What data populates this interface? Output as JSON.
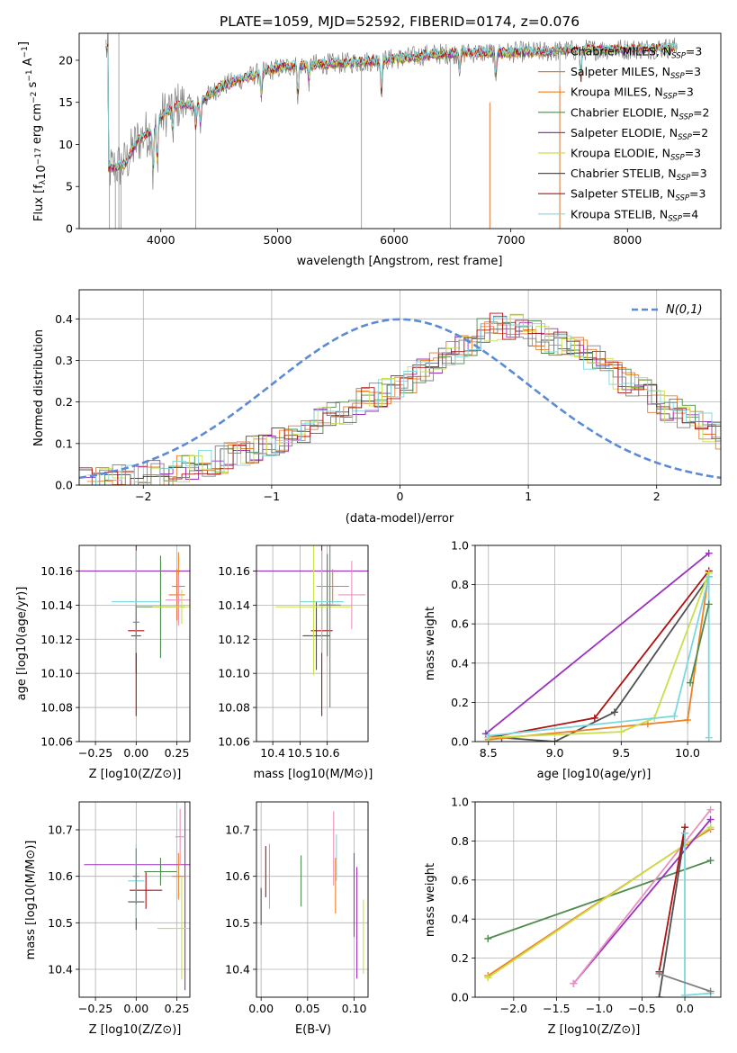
{
  "figure_title": "PLATE=1059, MJD=52592, FIBERID=0174, z=0.076",
  "colors": {
    "chabrier_miles": "#808080",
    "salpeter_miles": "#e07b39",
    "kroupa_miles": "#f07f20",
    "chabrier_elodie": "#4e8c4e",
    "salpeter_elodie": "#9b30c0",
    "kroupa_elodie": "#c8e04a",
    "chabrier_stelib": "#505050",
    "salpeter_stelib": "#b01010",
    "kroupa_stelib": "#7ad8dc",
    "pink": "#e890c0",
    "gauss": "#5b8bd6"
  },
  "chart_data": [
    {
      "panel": "spectrum",
      "type": "line",
      "xlabel": "wavelength [Angstrom, rest frame]",
      "ylabel": "Flux [f_λ 10^-17 erg cm^-2 s^-1 A^-1]",
      "xlim": [
        3300,
        8800
      ],
      "ylim": [
        0,
        23.2
      ],
      "xticks": [
        4000,
        5000,
        6000,
        7000,
        8000
      ],
      "yticks": [
        0,
        5,
        10,
        15,
        20
      ],
      "legend_position": "right",
      "legend": [
        {
          "label": "Chabrier MILES, N_SSP=3",
          "color_key": "chabrier_miles"
        },
        {
          "label": "Salpeter MILES, N_SSP=3",
          "color_key": "salpeter_miles"
        },
        {
          "label": "Kroupa MILES, N_SSP=3",
          "color_key": "kroupa_miles"
        },
        {
          "label": "Chabrier ELODIE, N_SSP=2",
          "color_key": "chabrier_elodie"
        },
        {
          "label": "Salpeter ELODIE, N_SSP=2",
          "color_key": "salpeter_elodie"
        },
        {
          "label": "Kroupa ELODIE, N_SSP=3",
          "color_key": "kroupa_elodie"
        },
        {
          "label": "Chabrier STELIB, N_SSP=3",
          "color_key": "chabrier_stelib"
        },
        {
          "label": "Salpeter STELIB, N_SSP=3",
          "color_key": "salpeter_stelib"
        },
        {
          "label": "Kroupa STELIB, N_SSP=4",
          "color_key": "kroupa_stelib"
        }
      ],
      "data_trend": {
        "x": [
          3550,
          3700,
          3800,
          3900,
          4000,
          4100,
          4200,
          4300,
          4500,
          4700,
          4900,
          5100,
          5300,
          5500,
          5700,
          5900,
          6100,
          6300,
          6500,
          6700,
          6900,
          7100,
          7300,
          7400,
          7600,
          7800,
          8000,
          8200,
          8400
        ],
        "y": [
          7.0,
          7.8,
          10.5,
          11.5,
          13.2,
          14.5,
          14.8,
          14.6,
          16.8,
          17.8,
          18.7,
          19.3,
          19.5,
          19.6,
          19.8,
          20.0,
          20.3,
          20.7,
          20.8,
          20.9,
          20.9,
          21.0,
          21.0,
          21.1,
          21.2,
          21.3,
          21.3,
          21.4,
          21.5
        ]
      }
    },
    {
      "panel": "residual_distribution",
      "type": "area",
      "xlabel": "(data-model)/error",
      "ylabel": "Normed distribution",
      "xlim": [
        -2.5,
        2.5
      ],
      "ylim": [
        0,
        0.47
      ],
      "xticks": [
        -2,
        -1,
        0,
        1,
        2
      ],
      "yticks": [
        0.0,
        0.1,
        0.2,
        0.3,
        0.4
      ],
      "legend": [
        {
          "label": "N(0,1)",
          "color_key": "gauss",
          "style": "dashed"
        }
      ],
      "gaussian": {
        "mean": 0,
        "sigma": 1
      },
      "histogram_bin_width": 0.1,
      "histogram_trend": {
        "x": [
          -2.5,
          -2.0,
          -1.5,
          -1.0,
          -0.5,
          0.0,
          0.5,
          0.75,
          1.0,
          1.5,
          2.0,
          2.5
        ],
        "y": [
          0.01,
          0.02,
          0.05,
          0.1,
          0.17,
          0.24,
          0.33,
          0.39,
          0.37,
          0.31,
          0.2,
          0.12
        ]
      }
    },
    {
      "panel": "age_vs_Z",
      "type": "scatter",
      "xlabel": "Z [log10(Z/Z⊙)]",
      "ylabel": "age  [log10(age/yr)]",
      "xlim": [
        -0.35,
        0.33
      ],
      "ylim": [
        10.06,
        10.175
      ],
      "xticks": [
        -0.25,
        0.0,
        0.25
      ],
      "xtick_labels": [
        "−0.25",
        "0.00",
        "0.25"
      ],
      "yticks": [
        10.06,
        10.08,
        10.1,
        10.12,
        10.14,
        10.16
      ],
      "points": [
        {
          "x": 0.3,
          "y": 10.16,
          "xerr": 0.65,
          "yerr": 0.0,
          "color_key": "salpeter_elodie"
        },
        {
          "x": 0.0,
          "y": 10.122,
          "xerr": 0.03,
          "yerr": 0.022,
          "color_key": "chabrier_stelib"
        },
        {
          "x": 0.0,
          "y": 10.125,
          "xerr": 0.05,
          "yerr": 0.05,
          "color_key": "salpeter_stelib"
        },
        {
          "x": 0.15,
          "y": 10.139,
          "xerr": 0.15,
          "yerr": 0.03,
          "color_key": "chabrier_elodie"
        },
        {
          "x": 0.26,
          "y": 10.151,
          "xerr": 0.04,
          "yerr": 0.02,
          "color_key": "kroupa_miles"
        },
        {
          "x": 0.25,
          "y": 10.146,
          "xerr": 0.05,
          "yerr": 0.015,
          "color_key": "salpeter_miles"
        },
        {
          "x": 0.26,
          "y": 10.143,
          "xerr": 0.08,
          "yerr": 0.015,
          "color_key": "pink"
        },
        {
          "x": 0.0,
          "y": 10.142,
          "xerr": 0.15,
          "yerr": 0.03,
          "color_key": "kroupa_stelib"
        },
        {
          "x": 0.28,
          "y": 10.139,
          "xerr": 0.18,
          "yerr": 0.01,
          "color_key": "kroupa_elodie"
        },
        {
          "x": 0.0,
          "y": 10.13,
          "xerr": 0.02,
          "yerr": 0.01,
          "color_key": "chabrier_miles"
        }
      ]
    },
    {
      "panel": "age_vs_mass",
      "type": "scatter",
      "xlabel": "mass [log10(M/M⊙)]",
      "ylabel": "",
      "xlim": [
        10.34,
        10.75
      ],
      "ylim": [
        10.06,
        10.175
      ],
      "xticks": [
        10.4,
        10.5,
        10.6
      ],
      "xtick_labels": [
        "10.4",
        "10.5",
        "10.6"
      ],
      "yticks": [
        10.06,
        10.08,
        10.1,
        10.12,
        10.14,
        10.16
      ],
      "points": [
        {
          "x": 10.63,
          "y": 10.16,
          "xerr": 0.3,
          "yerr": 0.0,
          "color_key": "salpeter_elodie"
        },
        {
          "x": 10.56,
          "y": 10.122,
          "xerr": 0.05,
          "yerr": 0.02,
          "color_key": "chabrier_stelib"
        },
        {
          "x": 10.58,
          "y": 10.125,
          "xerr": 0.04,
          "yerr": 0.05,
          "color_key": "salpeter_stelib"
        },
        {
          "x": 10.6,
          "y": 10.14,
          "xerr": 0.03,
          "yerr": 0.03,
          "color_key": "chabrier_elodie"
        },
        {
          "x": 10.62,
          "y": 10.151,
          "xerr": 0.06,
          "yerr": 0.01,
          "color_key": "kroupa_miles"
        },
        {
          "x": 10.69,
          "y": 10.146,
          "xerr": 0.05,
          "yerr": 0.02,
          "color_key": "pink"
        },
        {
          "x": 10.58,
          "y": 10.142,
          "xerr": 0.08,
          "yerr": 0.03,
          "color_key": "kroupa_stelib"
        },
        {
          "x": 10.55,
          "y": 10.139,
          "xerr": 0.14,
          "yerr": 0.04,
          "color_key": "kroupa_elodie"
        },
        {
          "x": 10.61,
          "y": 10.14,
          "xerr": 0.04,
          "yerr": 0.06,
          "color_key": "chabrier_miles"
        }
      ]
    },
    {
      "panel": "mass_weight_vs_age",
      "type": "line",
      "xlabel": "age  [log10(age/yr)]",
      "ylabel": "mass weight",
      "xlim": [
        8.4,
        10.25
      ],
      "ylim": [
        0,
        1.0
      ],
      "xticks": [
        8.5,
        9.0,
        9.5,
        10.0
      ],
      "yticks": [
        0.0,
        0.2,
        0.4,
        0.6,
        0.8,
        1.0
      ],
      "series": [
        {
          "color_key": "salpeter_elodie",
          "x": [
            8.48,
            10.16
          ],
          "y": [
            0.04,
            0.96
          ]
        },
        {
          "color_key": "salpeter_stelib",
          "x": [
            8.5,
            9.3,
            10.16
          ],
          "y": [
            0.02,
            0.12,
            0.87
          ]
        },
        {
          "color_key": "chabrier_stelib",
          "x": [
            8.6,
            9.0,
            9.45,
            10.16
          ],
          "y": [
            0.02,
            0.0,
            0.15,
            0.84
          ]
        },
        {
          "color_key": "kroupa_miles",
          "x": [
            8.5,
            9.7,
            10.0,
            10.16
          ],
          "y": [
            0.01,
            0.09,
            0.11,
            0.86
          ]
        },
        {
          "color_key": "kroupa_elodie",
          "x": [
            8.5,
            9.5,
            9.75,
            10.16
          ],
          "y": [
            0.02,
            0.05,
            0.12,
            0.86
          ]
        },
        {
          "color_key": "kroupa_stelib",
          "x": [
            8.5,
            9.9,
            10.16,
            10.16
          ],
          "y": [
            0.03,
            0.13,
            0.84,
            0.02
          ]
        },
        {
          "color_key": "chabrier_elodie",
          "x": [
            10.02,
            10.16
          ],
          "y": [
            0.3,
            0.7
          ]
        }
      ]
    },
    {
      "panel": "mass_vs_Z",
      "type": "scatter",
      "xlabel": "Z [log10(Z/Z⊙)]",
      "ylabel": "mass [log10(M/M⊙)]",
      "xlim": [
        -0.35,
        0.33
      ],
      "ylim": [
        10.34,
        10.76
      ],
      "xticks": [
        -0.25,
        0.0,
        0.25
      ],
      "xtick_labels": [
        "−0.25",
        "0.00",
        "0.25"
      ],
      "yticks": [
        10.4,
        10.5,
        10.6,
        10.7
      ],
      "points": [
        {
          "x": 0.3,
          "y": 10.625,
          "xerr": 0.62,
          "yerr": 0.27,
          "color_key": "salpeter_elodie"
        },
        {
          "x": 0.0,
          "y": 10.545,
          "xerr": 0.05,
          "yerr": 0.06,
          "color_key": "chabrier_stelib"
        },
        {
          "x": 0.06,
          "y": 10.57,
          "xerr": 0.1,
          "yerr": 0.04,
          "color_key": "salpeter_stelib"
        },
        {
          "x": 0.15,
          "y": 10.61,
          "xerr": 0.1,
          "yerr": 0.03,
          "color_key": "chabrier_elodie"
        },
        {
          "x": 0.26,
          "y": 10.6,
          "xerr": 0.04,
          "yerr": 0.05,
          "color_key": "kroupa_miles"
        },
        {
          "x": 0.27,
          "y": 10.685,
          "xerr": 0.03,
          "yerr": 0.06,
          "color_key": "pink"
        },
        {
          "x": 0.0,
          "y": 10.59,
          "xerr": 0.05,
          "yerr": 0.08,
          "color_key": "kroupa_stelib"
        },
        {
          "x": 0.28,
          "y": 10.488,
          "xerr": 0.15,
          "yerr": 0.11,
          "color_key": "kroupa_elodie"
        },
        {
          "x": 0.0,
          "y": 10.6,
          "xerr": 0.02,
          "yerr": 0.06,
          "color_key": "chabrier_miles"
        }
      ]
    },
    {
      "panel": "mass_vs_EBV",
      "type": "scatter",
      "xlabel": "E(B-V)",
      "ylabel": "",
      "xlim": [
        -0.005,
        0.115
      ],
      "ylim": [
        10.34,
        10.76
      ],
      "xticks": [
        0.0,
        0.05,
        0.1
      ],
      "xtick_labels": [
        "0.00",
        "0.05",
        "0.10"
      ],
      "yticks": [
        10.4,
        10.5,
        10.6,
        10.7
      ],
      "points": [
        {
          "x": 0.0,
          "y": 10.535,
          "yerr": 0.04,
          "color_key": "chabrier_stelib"
        },
        {
          "x": 0.005,
          "y": 10.61,
          "yerr": 0.055,
          "color_key": "salpeter_stelib"
        },
        {
          "x": 0.009,
          "y": 10.6,
          "yerr": 0.07,
          "color_key": "pink"
        },
        {
          "x": 0.043,
          "y": 10.59,
          "yerr": 0.055,
          "color_key": "chabrier_elodie"
        },
        {
          "x": 0.078,
          "y": 10.66,
          "yerr": 0.08,
          "color_key": "pink"
        },
        {
          "x": 0.08,
          "y": 10.58,
          "yerr": 0.06,
          "color_key": "kroupa_miles"
        },
        {
          "x": 0.081,
          "y": 10.64,
          "yerr": 0.05,
          "color_key": "kroupa_stelib"
        },
        {
          "x": 0.1,
          "y": 10.56,
          "yerr": 0.09,
          "color_key": "salpeter_elodie"
        },
        {
          "x": 0.103,
          "y": 10.5,
          "yerr": 0.12,
          "color_key": "salpeter_elodie"
        },
        {
          "x": 0.11,
          "y": 10.47,
          "yerr": 0.08,
          "color_key": "kroupa_elodie"
        }
      ]
    },
    {
      "panel": "mass_weight_vs_Z",
      "type": "line",
      "xlabel": "Z [log10(Z/Z⊙)]",
      "ylabel": "mass weight",
      "xlim": [
        -2.45,
        0.42
      ],
      "ylim": [
        0,
        1.0
      ],
      "xticks": [
        -2.0,
        -1.5,
        -1.0,
        -0.5,
        0.0
      ],
      "xtick_labels": [
        "−2.0",
        "−1.5",
        "−1.0",
        "−0.5",
        "0.0"
      ],
      "yticks": [
        0.0,
        0.2,
        0.4,
        0.6,
        0.8,
        1.0
      ],
      "series": [
        {
          "color_key": "chabrier_elodie",
          "x": [
            -2.3,
            0.3
          ],
          "y": [
            0.3,
            0.7
          ]
        },
        {
          "color_key": "kroupa_miles",
          "x": [
            -2.3,
            0.0,
            0.3
          ],
          "y": [
            0.11,
            0.78,
            0.86
          ]
        },
        {
          "color_key": "kroupa_elodie",
          "x": [
            -2.3,
            0.3
          ],
          "y": [
            0.1,
            0.87
          ]
        },
        {
          "color_key": "salpeter_elodie",
          "x": [
            -1.3,
            0.3
          ],
          "y": [
            0.07,
            0.91
          ]
        },
        {
          "color_key": "pink",
          "x": [
            -1.3,
            0.3
          ],
          "y": [
            0.07,
            0.96
          ]
        },
        {
          "color_key": "chabrier_stelib",
          "x": [
            -0.3,
            0.0
          ],
          "y": [
            0.0,
            0.84
          ]
        },
        {
          "color_key": "salpeter_stelib",
          "x": [
            -0.3,
            0.0
          ],
          "y": [
            0.13,
            0.87
          ]
        },
        {
          "color_key": "kroupa_stelib",
          "x": [
            0.0,
            0.0,
            0.3
          ],
          "y": [
            0.84,
            0.01,
            0.02
          ]
        },
        {
          "color_key": "chabrier_miles",
          "x": [
            -0.3,
            0.3
          ],
          "y": [
            0.12,
            0.03
          ]
        }
      ]
    }
  ]
}
